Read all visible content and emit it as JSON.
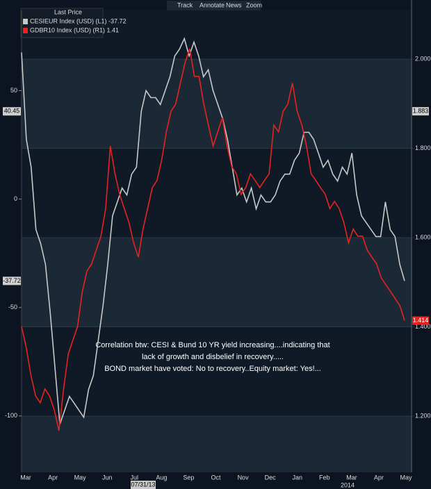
{
  "toolbar": [
    "Track",
    "Annotate",
    "News",
    "Zoom"
  ],
  "chart_data": {
    "type": "line",
    "legend_title": "Last Price",
    "annotation": [
      "Correlation btw: CESI & Bund 10 YR yield increasing....indicating that",
      "lack of growth and disbelief in recovery.....",
      "BOND market have voted: No to recovery..Equity market: Yes!..."
    ],
    "xtick_labels": [
      "Mar",
      "Apr",
      "May",
      "Jun",
      "Jul",
      "Aug",
      "Sep",
      "Oct",
      "Nov",
      "Dec",
      "Jan",
      "Feb",
      "Mar",
      "Apr",
      "May"
    ],
    "year_label": "2014",
    "date_marker": "07/31/13",
    "ylim": [
      -126,
      87
    ],
    "yticks": [
      50,
      0,
      -50,
      -100
    ],
    "y2lim": [
      1.074,
      2.109
    ],
    "y2ticks": [
      {
        "value": 2,
        "label": "2.000"
      },
      {
        "value": 1.8,
        "label": "1.800"
      },
      {
        "value": 1.6,
        "label": "1.600"
      },
      {
        "value": 1.4,
        "label": "1.400"
      },
      {
        "value": 1.2,
        "label": "1.200"
      }
    ],
    "left_tags": [
      40.45,
      -37.72
    ],
    "right_tags": [
      1.883,
      1.414
    ],
    "series": [
      {
        "name": "CESIEUR Index (USD) (L1) -37.72",
        "color": "#c8c8c8",
        "axis": "y",
        "values": [
          67.6,
          27.6,
          14.7,
          -14.1,
          -20.5,
          -30.1,
          -52.6,
          -78.2,
          -103.8,
          -97.4,
          -91,
          -94.2,
          -97.4,
          -100.6,
          -87.8,
          -81.4,
          -65.4,
          -49.4,
          -30.1,
          -7.7,
          -1.3,
          5.1,
          1.9,
          11.5,
          14.7,
          40.4,
          50,
          46.8,
          46.8,
          43.6,
          50,
          56.4,
          66,
          69.2,
          74,
          66,
          72.4,
          66,
          56.4,
          59.6,
          50,
          43.6,
          37.2,
          27.6,
          14.7,
          1.9,
          5.1,
          -1.3,
          5.1,
          -4.5,
          1.9,
          -1.3,
          -1.3,
          1.9,
          8.3,
          11.5,
          11.5,
          17.9,
          21.2,
          30.8,
          30.8,
          27.6,
          21.2,
          14.7,
          17.9,
          11.5,
          8.3,
          14.7,
          11.5,
          21.2,
          1.9,
          -7.7,
          -10.9,
          -14.1,
          -17.3,
          -17.3,
          -1.3,
          -14.1,
          -17.3,
          -30.1,
          -37.72
        ]
      },
      {
        "name": "GDBR10 Index (USD) (R1) 1.41",
        "color": "#e8231f",
        "axis": "y2",
        "values": [
          1.401,
          1.354,
          1.292,
          1.245,
          1.23,
          1.261,
          1.245,
          1.214,
          1.167,
          1.261,
          1.339,
          1.37,
          1.401,
          1.479,
          1.525,
          1.541,
          1.572,
          1.603,
          1.665,
          1.805,
          1.743,
          1.697,
          1.665,
          1.634,
          1.588,
          1.556,
          1.619,
          1.665,
          1.712,
          1.728,
          1.774,
          1.837,
          1.883,
          1.899,
          1.946,
          1.992,
          2.023,
          1.961,
          1.961,
          1.899,
          1.852,
          1.805,
          1.837,
          1.868,
          1.805,
          1.759,
          1.743,
          1.697,
          1.712,
          1.743,
          1.728,
          1.712,
          1.728,
          1.743,
          1.852,
          1.837,
          1.883,
          1.899,
          1.946,
          1.883,
          1.852,
          1.805,
          1.743,
          1.728,
          1.712,
          1.697,
          1.665,
          1.681,
          1.665,
          1.634,
          1.588,
          1.619,
          1.603,
          1.603,
          1.572,
          1.556,
          1.541,
          1.51,
          1.494,
          1.479,
          1.463,
          1.447,
          1.414
        ]
      }
    ]
  }
}
